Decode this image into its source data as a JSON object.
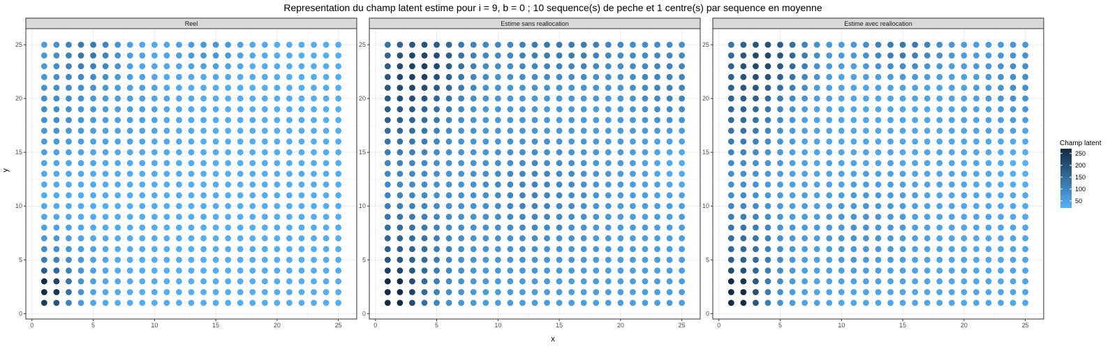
{
  "chart_data": {
    "type": "scatter",
    "title": "Representation du champ latent estime pour i = 9, b = 0 ; 10 sequence(s) de peche et 1 centre(s) par sequence en moyenne",
    "xlabel": "x",
    "ylabel": "y",
    "xlim": [
      -0.5,
      26.5
    ],
    "ylim": [
      -0.5,
      26.5
    ],
    "x_ticks": [
      0,
      5,
      10,
      15,
      20,
      25
    ],
    "y_ticks": [
      0,
      5,
      10,
      15,
      20,
      25
    ],
    "grid": true,
    "legend": {
      "title": "Champ latent",
      "position": "right",
      "ticks": [
        50,
        100,
        150,
        200,
        250
      ],
      "range": [
        20,
        270
      ],
      "color_low": "#56B1F7",
      "color_high": "#132B43"
    },
    "grid_points": {
      "x": [
        1,
        2,
        3,
        4,
        5,
        6,
        7,
        8,
        9,
        10,
        11,
        12,
        13,
        14,
        15,
        16,
        17,
        18,
        19,
        20,
        21,
        22,
        23,
        24,
        25
      ],
      "y": [
        1,
        2,
        3,
        4,
        5,
        6,
        7,
        8,
        9,
        10,
        11,
        12,
        13,
        14,
        15,
        16,
        17,
        18,
        19,
        20,
        21,
        22,
        23,
        24,
        25
      ]
    },
    "panels": [
      {
        "strip": "Reel",
        "field": {
          "base": 28,
          "terms": [
            {
              "amp": 230,
              "cx": 1,
              "cy": 2,
              "sx": 1.3,
              "sy": 1.3
            },
            {
              "amp": 80,
              "cx": 1,
              "cy": 4,
              "sx": 2.5,
              "sy": 2.5
            },
            {
              "amp": 95,
              "cx": 4.5,
              "cy": 24.5,
              "sx": 2.0,
              "sy": 2.0
            },
            {
              "amp": 55,
              "cx": 1.5,
              "cy": 19,
              "sx": 2.5,
              "sy": 3.0
            },
            {
              "amp": 45,
              "cx": 14.5,
              "cy": 24.5,
              "sx": 2.0,
              "sy": 1.2
            },
            {
              "amp": 22,
              "cx": 8,
              "cy": 19,
              "sx": 3.0,
              "sy": 3.0
            }
          ]
        }
      },
      {
        "strip": "Estime sans reallocation",
        "field": {
          "base": 55,
          "terms": [
            {
              "amp": 200,
              "cx": 1,
              "cy": 1.5,
              "sx": 1.6,
              "sy": 1.6
            },
            {
              "amp": 120,
              "cx": 1.5,
              "cy": 5,
              "sx": 3.0,
              "sy": 4.0
            },
            {
              "amp": 140,
              "cx": 4,
              "cy": 23.5,
              "sx": 2.5,
              "sy": 2.5
            },
            {
              "amp": 110,
              "cx": 1.5,
              "cy": 19,
              "sx": 3.0,
              "sy": 3.5
            },
            {
              "amp": 70,
              "cx": 15,
              "cy": 25,
              "sx": 4.0,
              "sy": 2.5
            },
            {
              "amp": 50,
              "cx": 24.5,
              "cy": 21.5,
              "sx": 2.5,
              "sy": 3.0
            },
            {
              "amp": 50,
              "cx": 13,
              "cy": 11,
              "sx": 3.5,
              "sy": 4.0
            },
            {
              "amp": -30,
              "cx": 25,
              "cy": 14,
              "sx": 2.0,
              "sy": 2.0
            }
          ]
        }
      },
      {
        "strip": "Estime avec reallocation",
        "field": {
          "base": 40,
          "terms": [
            {
              "amp": 220,
              "cx": 1,
              "cy": 1.5,
              "sx": 1.5,
              "sy": 1.5
            },
            {
              "amp": 120,
              "cx": 1.5,
              "cy": 5,
              "sx": 2.5,
              "sy": 4.0
            },
            {
              "amp": 150,
              "cx": 4,
              "cy": 24,
              "sx": 2.5,
              "sy": 2.5
            },
            {
              "amp": 110,
              "cx": 1.5,
              "cy": 19,
              "sx": 2.5,
              "sy": 3.5
            },
            {
              "amp": 90,
              "cx": 15,
              "cy": 25,
              "sx": 2.5,
              "sy": 1.8
            },
            {
              "amp": 45,
              "cx": 24.5,
              "cy": 22,
              "sx": 2.5,
              "sy": 3.0
            },
            {
              "amp": 35,
              "cx": 12,
              "cy": 8,
              "sx": 3.0,
              "sy": 3.0
            },
            {
              "amp": -20,
              "cx": 25,
              "cy": 14,
              "sx": 2.0,
              "sy": 2.0
            }
          ]
        }
      }
    ]
  }
}
